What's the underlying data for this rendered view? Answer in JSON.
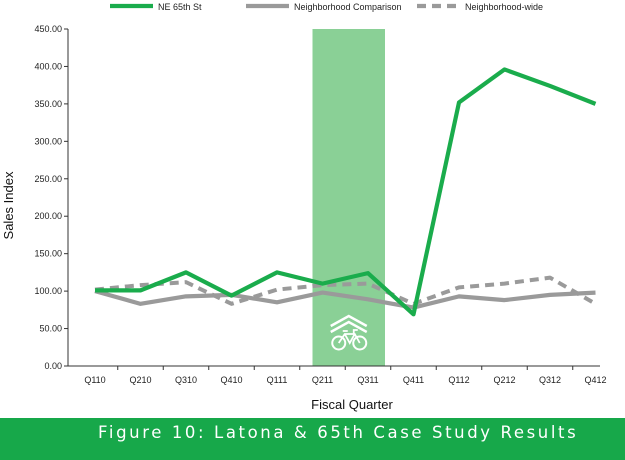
{
  "caption": "Figure 10: Latona & 65th Case Study Results",
  "chart_data": {
    "type": "line",
    "title": "",
    "xlabel": "Fiscal Quarter",
    "ylabel": "Sales Index",
    "ylim": [
      0,
      450
    ],
    "yticks": [
      "0.00",
      "50.00",
      "100.00",
      "150.00",
      "200.00",
      "250.00",
      "300.00",
      "350.00",
      "400.00",
      "450.00"
    ],
    "grid": false,
    "legend_position": "top",
    "categories": [
      "Q110",
      "Q210",
      "Q310",
      "Q410",
      "Q111",
      "Q211",
      "Q311",
      "Q411",
      "Q112",
      "Q212",
      "Q312",
      "Q412"
    ],
    "series": [
      {
        "name": "NE 65th St",
        "color": "#1aac4c",
        "style": "solid",
        "values": [
          101,
          101,
          125,
          94,
          125,
          110,
          124,
          69,
          352,
          396,
          374,
          350
        ]
      },
      {
        "name": "Neighborhood Comparison",
        "color": "#9a9a9a",
        "style": "solid",
        "values": [
          100,
          83,
          93,
          95,
          85,
          98,
          89,
          78,
          93,
          88,
          95,
          98
        ]
      },
      {
        "name": "Neighborhood-wide",
        "color": "#9a9a9a",
        "style": "dashed",
        "values": [
          102,
          108,
          112,
          83,
          102,
          108,
          110,
          83,
          105,
          110,
          118,
          83
        ]
      }
    ],
    "highlight": {
      "from": "Q211",
      "to": "Q311",
      "color": "#8ad096",
      "icon": "bike-lane-icon"
    }
  }
}
